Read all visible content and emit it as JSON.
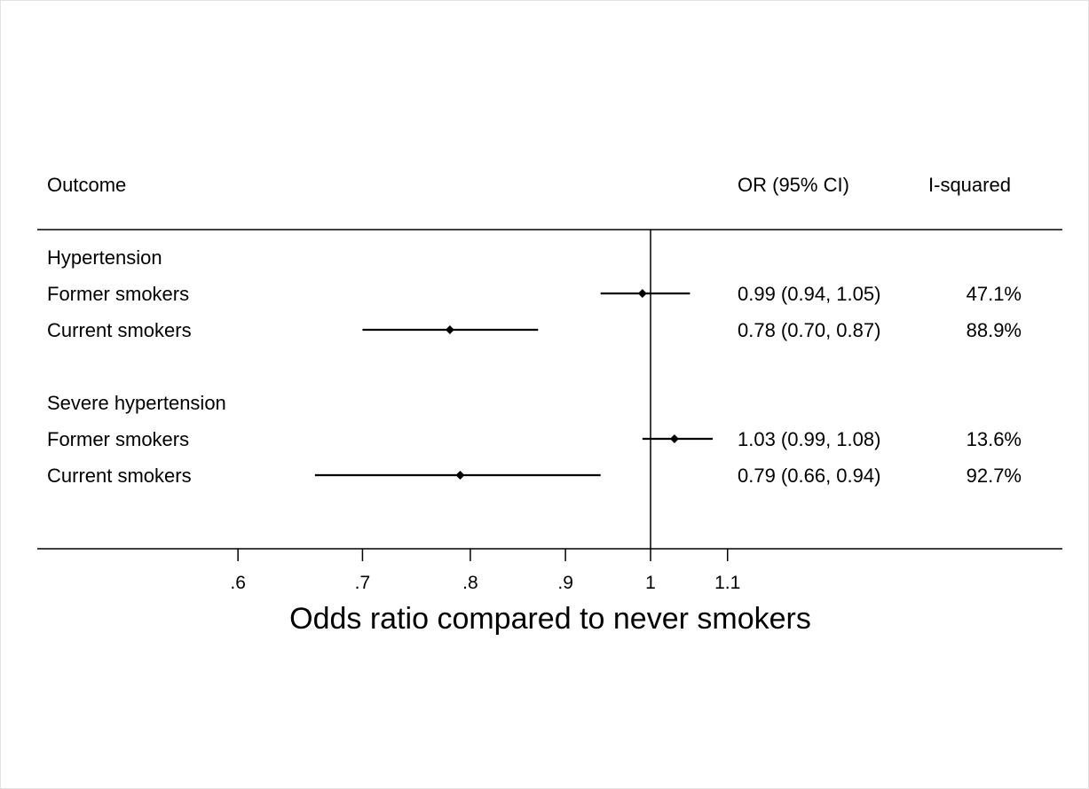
{
  "chart_data": {
    "type": "forest",
    "headers": {
      "outcome": "Outcome",
      "or_ci": "OR (95% CI)",
      "i_squared": "I-squared"
    },
    "groups": [
      {
        "name": "Hypertension",
        "rows": [
          {
            "label": "Former smokers",
            "or": 0.99,
            "lower": 0.94,
            "upper": 1.05,
            "or_text": "0.99 (0.94, 1.05)",
            "i2_text": "47.1%"
          },
          {
            "label": "Current smokers",
            "or": 0.78,
            "lower": 0.7,
            "upper": 0.87,
            "or_text": "0.78 (0.70, 0.87)",
            "i2_text": "88.9%"
          }
        ]
      },
      {
        "name": "Severe hypertension",
        "rows": [
          {
            "label": "Former smokers",
            "or": 1.03,
            "lower": 0.99,
            "upper": 1.08,
            "or_text": "1.03 (0.99, 1.08)",
            "i2_text": "13.6%"
          },
          {
            "label": "Current smokers",
            "or": 0.79,
            "lower": 0.66,
            "upper": 0.94,
            "or_text": "0.79 (0.66, 0.94)",
            "i2_text": "92.7%"
          }
        ]
      }
    ],
    "x_axis": {
      "scale": "log",
      "reference_line": 1,
      "ticks": [
        0.6,
        0.7,
        0.8,
        0.9,
        1,
        1.1
      ],
      "tick_labels": [
        ".6",
        ".7",
        ".8",
        ".9",
        "1",
        "1.1"
      ],
      "label": "Odds ratio compared to never smokers"
    }
  },
  "colors": {
    "ink": "#000000",
    "background": "#ffffff"
  }
}
